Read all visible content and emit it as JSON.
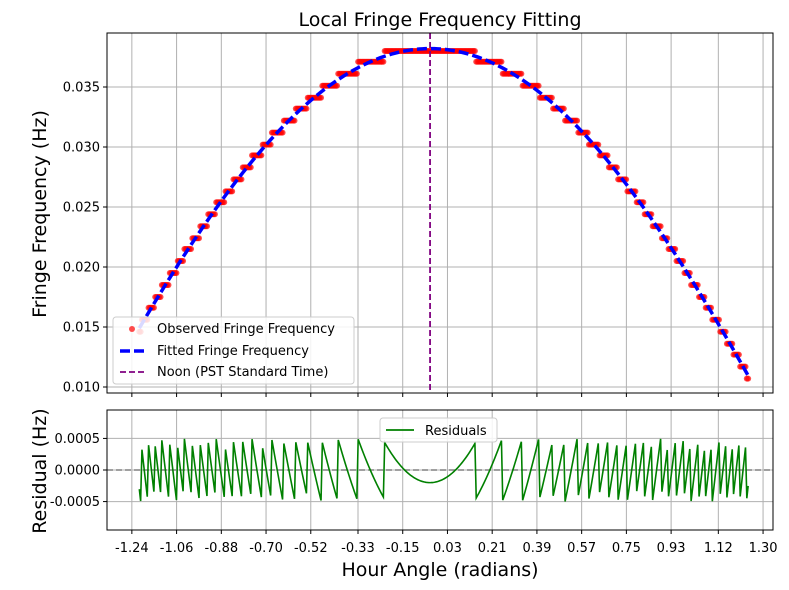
{
  "chart_data": [
    {
      "type": "scatter",
      "title": "Local Fringe Frequency Fitting",
      "ylabel": "Fringe Frequency (Hz)",
      "xlim": [
        -1.34,
        1.34
      ],
      "ylim": [
        0.0095,
        0.0395
      ],
      "yticks": [
        0.01,
        0.015,
        0.02,
        0.025,
        0.03,
        0.035
      ],
      "ytick_labels": [
        "0.010",
        "0.015",
        "0.020",
        "0.025",
        "0.030",
        "0.035"
      ],
      "grid": true,
      "legend_position": "lower-left",
      "noon_hour_angle": -0.04,
      "series": [
        {
          "name": "Observed Fringe Frequency",
          "kind": "scatter",
          "color": "#ff0000",
          "x_range": [
            -1.21,
            1.24
          ],
          "levels": [
            0.0107,
            0.0117,
            0.0127,
            0.0136,
            0.0146,
            0.0156,
            0.0166,
            0.0175,
            0.0185,
            0.0195,
            0.0205,
            0.0215,
            0.0224,
            0.0234,
            0.0244,
            0.0254,
            0.0263,
            0.0273,
            0.0283,
            0.0293,
            0.0302,
            0.0312,
            0.0322,
            0.0332,
            0.0341,
            0.0351,
            0.0361,
            0.0371,
            0.038
          ]
        },
        {
          "name": "Fitted Fringe Frequency",
          "kind": "line",
          "style": "dashed",
          "color": "#0000ff",
          "model": "A*cos(H - H0)",
          "A": 0.0382,
          "H0": -0.04,
          "x_range": [
            -1.21,
            1.24
          ]
        },
        {
          "name": "Noon (PST Standard Time)",
          "kind": "vline",
          "style": "dashed",
          "color": "#800080",
          "x": -0.04
        }
      ]
    },
    {
      "type": "line",
      "ylabel": "Residual (Hz)",
      "xlabel": "Hour Angle (radians)",
      "xlim": [
        -1.34,
        1.34
      ],
      "ylim": [
        -0.00095,
        0.00095
      ],
      "xticks": [
        -1.24,
        -1.06,
        -0.88,
        -0.7,
        -0.52,
        -0.33,
        -0.15,
        0.03,
        0.21,
        0.39,
        0.57,
        0.75,
        0.93,
        1.12,
        1.3
      ],
      "xtick_labels": [
        "-1.24",
        "-1.06",
        "-0.88",
        "-0.70",
        "-0.52",
        "-0.33",
        "-0.15",
        "0.03",
        "0.21",
        "0.39",
        "0.57",
        "0.75",
        "0.93",
        "1.12",
        "1.30"
      ],
      "yticks": [
        -0.0005,
        0.0,
        0.0005
      ],
      "ytick_labels": [
        "-0.0005",
        "0.0000",
        "0.0005"
      ],
      "zero_line": true,
      "grid": true,
      "legend_position": "upper-center",
      "series": [
        {
          "name": "Residuals",
          "color": "#008000",
          "note": "observed minus fitted"
        }
      ]
    }
  ]
}
